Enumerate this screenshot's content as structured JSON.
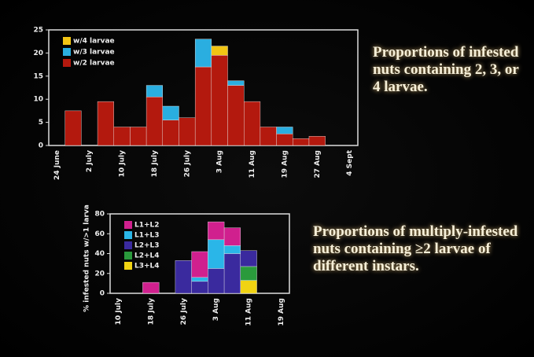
{
  "chart_data": [
    {
      "type": "bar",
      "stacked": true,
      "annotation": "Proportions of infested nuts containing 2, 3, or 4 larvae.",
      "categories": [
        "24 June",
        null,
        "2 July",
        null,
        "10 July",
        null,
        "18 July",
        null,
        "26 July",
        null,
        "3 Aug",
        null,
        "11 Aug",
        null,
        "19 Aug",
        null,
        "27 Aug",
        null,
        "4 Sept"
      ],
      "series": [
        {
          "name": "w/2 larvae",
          "color": "#b3190e",
          "values": [
            0,
            7.5,
            0,
            9.5,
            4,
            4,
            10.5,
            5.5,
            6,
            17,
            19.5,
            13,
            9.5,
            4,
            2.5,
            1.5,
            2,
            0,
            0
          ]
        },
        {
          "name": "w/3 larvae",
          "color": "#2aaee0",
          "values": [
            0,
            0,
            0,
            0,
            0,
            0,
            2.5,
            3,
            0,
            6,
            0,
            1,
            0,
            0,
            1.5,
            0,
            0,
            0,
            0
          ]
        },
        {
          "name": "w/4 larvae",
          "color": "#f2c514",
          "values": [
            0,
            0,
            0,
            0,
            0,
            0,
            0,
            0,
            0,
            0,
            2,
            0,
            0,
            0,
            0,
            0,
            0,
            0,
            0
          ]
        }
      ],
      "ylim": [
        0,
        25
      ],
      "yticks": [
        0,
        5,
        10,
        15,
        20,
        25
      ]
    },
    {
      "type": "bar",
      "stacked": true,
      "annotation": "Proportions of multiply-infested nuts containing ≥2 larvae of different instars.",
      "y_label": "% infested nuts w/>1 larva",
      "categories": [
        "10 July",
        null,
        "18 July",
        null,
        "26 July",
        null,
        "3 Aug",
        null,
        "11 Aug",
        null,
        "19 Aug"
      ],
      "series": [
        {
          "name": "L3+L4",
          "color": "#f0d312",
          "values": [
            0,
            0,
            0,
            0,
            0,
            0,
            0,
            0,
            13,
            0,
            0
          ]
        },
        {
          "name": "L2+L4",
          "color": "#2a9a3c",
          "values": [
            0,
            0,
            0,
            0,
            0,
            0,
            0,
            0,
            14,
            0,
            0
          ]
        },
        {
          "name": "L2+L3",
          "color": "#3a2a9e",
          "values": [
            0,
            0,
            0,
            0,
            33,
            12,
            25,
            40,
            16,
            0,
            0
          ]
        },
        {
          "name": "L1+L3",
          "color": "#2ab6e8",
          "values": [
            0,
            0,
            0,
            0,
            0,
            4,
            29,
            8,
            0,
            0,
            0
          ]
        },
        {
          "name": "L1+L2",
          "color": "#d0208e",
          "values": [
            0,
            0,
            11,
            0,
            0,
            26,
            18,
            18,
            0,
            0,
            0
          ]
        }
      ],
      "ylim": [
        0,
        80
      ],
      "yticks": [
        0,
        20,
        40,
        60,
        80
      ]
    }
  ]
}
